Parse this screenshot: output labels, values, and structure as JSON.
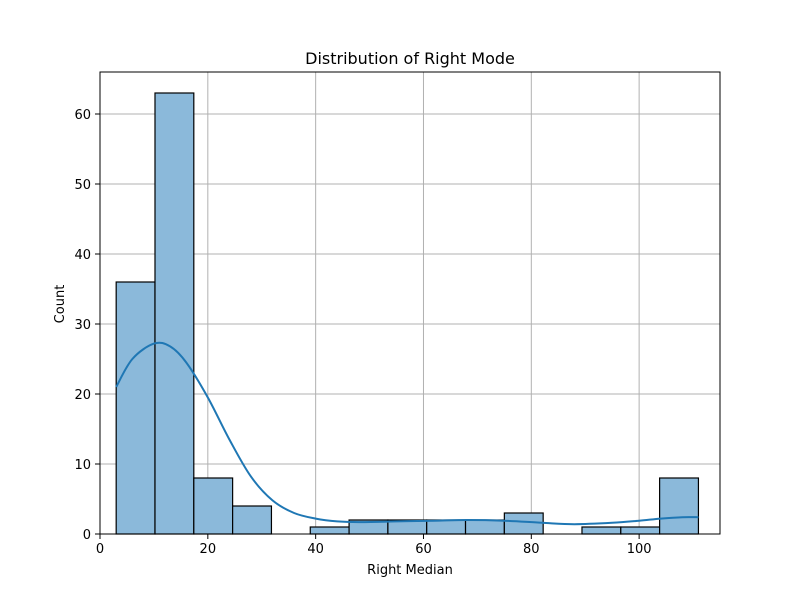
{
  "chart_data": {
    "type": "bar",
    "title": "Distribution of Right Mode",
    "xlabel": "Right Median",
    "ylabel": "Count",
    "xlim": [
      0,
      115
    ],
    "ylim": [
      0,
      66
    ],
    "xticks": [
      0,
      20,
      40,
      60,
      80,
      100
    ],
    "yticks": [
      0,
      10,
      20,
      30,
      40,
      50,
      60
    ],
    "grid": true,
    "bar_color": "#8bb9da",
    "edge_color": "#000000",
    "kde_color": "#1f77b4",
    "bins": [
      {
        "x0": 3.0,
        "x1": 10.2,
        "count": 36
      },
      {
        "x0": 10.2,
        "x1": 17.4,
        "count": 63
      },
      {
        "x0": 17.4,
        "x1": 24.6,
        "count": 8
      },
      {
        "x0": 24.6,
        "x1": 31.8,
        "count": 4
      },
      {
        "x0": 31.8,
        "x1": 39.0,
        "count": 0
      },
      {
        "x0": 39.0,
        "x1": 46.2,
        "count": 1
      },
      {
        "x0": 46.2,
        "x1": 53.4,
        "count": 2
      },
      {
        "x0": 53.4,
        "x1": 60.6,
        "count": 2
      },
      {
        "x0": 60.6,
        "x1": 67.8,
        "count": 2
      },
      {
        "x0": 67.8,
        "x1": 75.0,
        "count": 2
      },
      {
        "x0": 75.0,
        "x1": 82.2,
        "count": 3
      },
      {
        "x0": 82.2,
        "x1": 89.4,
        "count": 0
      },
      {
        "x0": 89.4,
        "x1": 96.6,
        "count": 1
      },
      {
        "x0": 96.6,
        "x1": 103.8,
        "count": 1
      },
      {
        "x0": 103.8,
        "x1": 111.0,
        "count": 8
      }
    ],
    "kde": {
      "x": [
        3,
        6,
        10,
        13,
        16,
        20,
        24,
        28,
        32,
        36,
        40,
        44,
        48,
        55,
        62,
        68,
        75,
        82,
        88,
        95,
        100,
        104,
        108,
        111
      ],
      "y": [
        21,
        25,
        27.2,
        26.8,
        24.5,
        19.5,
        13.5,
        8.2,
        4.8,
        3.0,
        2.2,
        1.8,
        1.7,
        1.8,
        1.9,
        2.0,
        1.9,
        1.6,
        1.4,
        1.6,
        1.9,
        2.2,
        2.4,
        2.4
      ]
    }
  }
}
